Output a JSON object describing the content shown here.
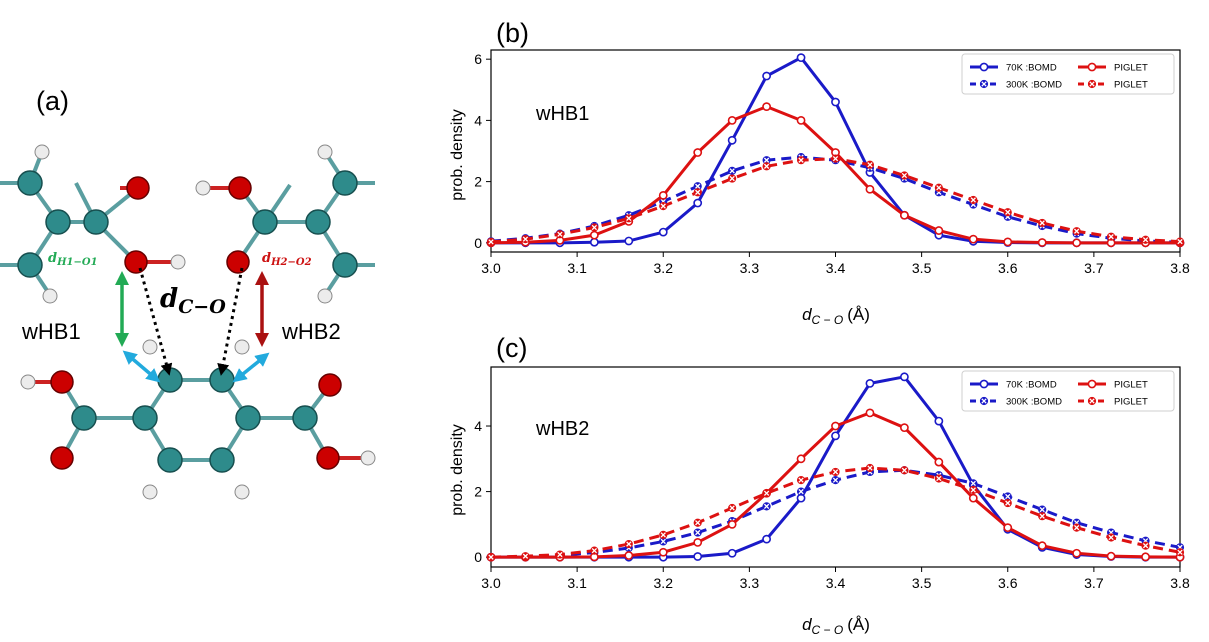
{
  "panels": {
    "a": {
      "letter": "(a)",
      "label_left": "wHB1",
      "label_right": "wHB2",
      "d_center": "d",
      "d_center_sub": "C−O",
      "d_left": "d",
      "d_left_sub": "H1−O1",
      "d_right": "d",
      "d_right_sub": "H2−O2",
      "colors": {
        "carbon": "#2e8b8b",
        "oxygen": "#cc0000",
        "hydrogen": "#e8e8e8",
        "green": "#22aa55",
        "darkred": "#aa1111",
        "cyan": "#22aadd"
      }
    }
  },
  "chart_data": [
    {
      "type": "line",
      "panel": "(b)",
      "inset_label": "wHB1",
      "xlabel": "d",
      "xlabel_sub": "C − O",
      "xlabel_unit": "(Å)",
      "ylabel": "prob. density",
      "xlim": [
        3.0,
        3.8
      ],
      "ylim": [
        -0.3,
        6.3
      ],
      "xticks": [
        "3.0",
        "3.1",
        "3.2",
        "3.3",
        "3.4",
        "3.5",
        "3.6",
        "3.7",
        "3.8"
      ],
      "yticks": [
        "0",
        "2",
        "4",
        "6"
      ],
      "legend_position": "top-right",
      "x": [
        3.0,
        3.04,
        3.08,
        3.12,
        3.16,
        3.2,
        3.24,
        3.28,
        3.32,
        3.36,
        3.4,
        3.44,
        3.48,
        3.52,
        3.56,
        3.6,
        3.64,
        3.68,
        3.72,
        3.76,
        3.8
      ],
      "series": [
        {
          "name": "70K :BOMD",
          "color": "#1a1ac8",
          "dashed": false,
          "marker": "circle",
          "values": [
            0.0,
            0.0,
            0.0,
            0.02,
            0.06,
            0.35,
            1.3,
            3.35,
            5.45,
            6.05,
            4.6,
            2.3,
            0.9,
            0.25,
            0.05,
            0.01,
            0.0,
            0.0,
            0.0,
            0.0,
            0.0
          ]
        },
        {
          "name": "300K :BOMD",
          "color": "#1a1ac8",
          "dashed": true,
          "marker": "cross",
          "values": [
            0.05,
            0.15,
            0.3,
            0.55,
            0.9,
            1.35,
            1.85,
            2.35,
            2.7,
            2.8,
            2.7,
            2.45,
            2.1,
            1.65,
            1.25,
            0.85,
            0.55,
            0.3,
            0.15,
            0.06,
            0.02
          ]
        },
        {
          "name": "PIGLET",
          "color": "#dd1111",
          "dashed": false,
          "marker": "circle",
          "values": [
            0.0,
            0.02,
            0.08,
            0.25,
            0.7,
            1.55,
            2.95,
            4.0,
            4.45,
            4.0,
            2.95,
            1.75,
            0.9,
            0.4,
            0.12,
            0.03,
            0.01,
            0.0,
            0.0,
            0.0,
            0.0
          ]
        },
        {
          "name": "PIGLET",
          "color": "#dd1111",
          "dashed": true,
          "marker": "cross",
          "values": [
            0.03,
            0.12,
            0.28,
            0.5,
            0.8,
            1.2,
            1.65,
            2.1,
            2.5,
            2.7,
            2.75,
            2.55,
            2.2,
            1.8,
            1.4,
            1.0,
            0.65,
            0.38,
            0.2,
            0.1,
            0.04
          ]
        }
      ]
    },
    {
      "type": "line",
      "panel": "(c)",
      "inset_label": "wHB2",
      "xlabel": "d",
      "xlabel_sub": "C − O",
      "xlabel_unit": "(Å)",
      "ylabel": "prob. density",
      "xlim": [
        3.0,
        3.8
      ],
      "ylim": [
        -0.3,
        5.8
      ],
      "xticks": [
        "3.0",
        "3.1",
        "3.2",
        "3.3",
        "3.4",
        "3.5",
        "3.6",
        "3.7",
        "3.8"
      ],
      "yticks": [
        "0",
        "2",
        "4"
      ],
      "legend_position": "top-right",
      "x": [
        3.0,
        3.04,
        3.08,
        3.12,
        3.16,
        3.2,
        3.24,
        3.28,
        3.32,
        3.36,
        3.4,
        3.44,
        3.48,
        3.52,
        3.56,
        3.6,
        3.64,
        3.68,
        3.72,
        3.76,
        3.8
      ],
      "series": [
        {
          "name": "70K :BOMD",
          "color": "#1a1ac8",
          "dashed": false,
          "marker": "circle",
          "values": [
            0.0,
            0.0,
            0.0,
            0.0,
            0.0,
            0.0,
            0.02,
            0.12,
            0.55,
            1.8,
            3.7,
            5.3,
            5.5,
            4.15,
            2.2,
            0.85,
            0.3,
            0.08,
            0.02,
            0.0,
            0.0
          ]
        },
        {
          "name": "300K :BOMD",
          "color": "#1a1ac8",
          "dashed": true,
          "marker": "cross",
          "values": [
            0.0,
            0.02,
            0.06,
            0.14,
            0.28,
            0.48,
            0.75,
            1.1,
            1.55,
            2.0,
            2.35,
            2.6,
            2.65,
            2.5,
            2.25,
            1.85,
            1.45,
            1.05,
            0.75,
            0.5,
            0.3
          ]
        },
        {
          "name": "PIGLET",
          "color": "#dd1111",
          "dashed": false,
          "marker": "circle",
          "values": [
            0.0,
            0.0,
            0.0,
            0.01,
            0.05,
            0.15,
            0.45,
            1.0,
            1.95,
            3.0,
            4.0,
            4.4,
            3.95,
            2.9,
            1.8,
            0.9,
            0.35,
            0.12,
            0.03,
            0.01,
            0.0
          ]
        },
        {
          "name": "PIGLET",
          "color": "#dd1111",
          "dashed": true,
          "marker": "cross",
          "values": [
            0.0,
            0.03,
            0.08,
            0.2,
            0.4,
            0.68,
            1.05,
            1.5,
            1.95,
            2.35,
            2.6,
            2.72,
            2.65,
            2.4,
            2.05,
            1.65,
            1.25,
            0.9,
            0.6,
            0.35,
            0.15
          ]
        }
      ]
    }
  ]
}
